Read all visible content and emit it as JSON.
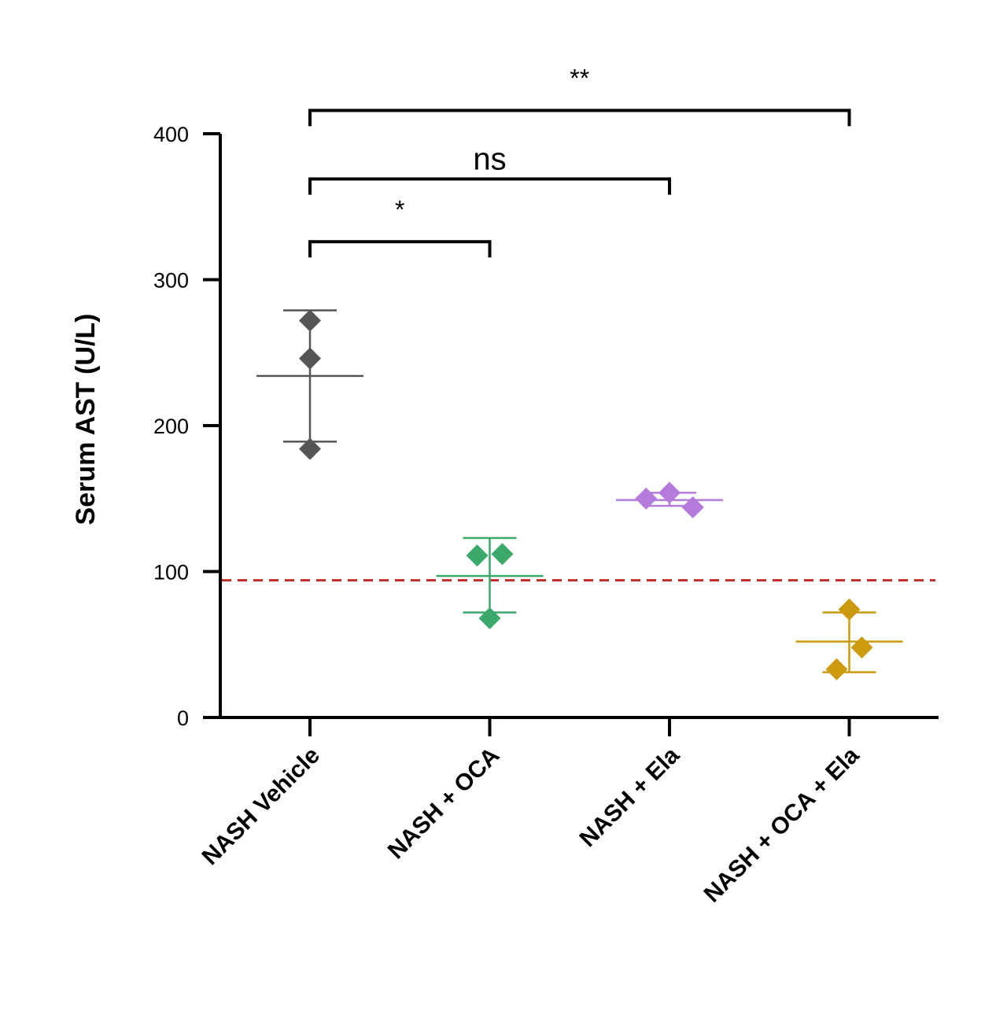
{
  "chart_data": {
    "type": "scatter",
    "ylabel": "Serum AST (U/L)",
    "xlabel": "",
    "ylim": [
      0,
      400
    ],
    "yticks": [
      0,
      100,
      200,
      300,
      400
    ],
    "categories": [
      "NASH Vehicle",
      "NASH + OCA",
      "NASH + Ela",
      "NASH + OCA + Ela"
    ],
    "series": [
      {
        "category": "NASH Vehicle",
        "color": "#555555",
        "points": [
          {
            "dx": 0,
            "y": 272
          },
          {
            "dx": 0,
            "y": 246
          },
          {
            "dx": 0,
            "y": 184
          }
        ],
        "mean": 234,
        "err_low": 189,
        "err_high": 279
      },
      {
        "category": "NASH + OCA",
        "color": "#3aa96a",
        "points": [
          {
            "dx": -0.07,
            "y": 111
          },
          {
            "dx": 0.07,
            "y": 112
          },
          {
            "dx": 0,
            "y": 68
          }
        ],
        "mean": 97,
        "err_low": 72,
        "err_high": 123
      },
      {
        "category": "NASH + Ela",
        "color": "#b57bdc",
        "points": [
          {
            "dx": -0.13,
            "y": 150
          },
          {
            "dx": 0,
            "y": 154
          },
          {
            "dx": 0.13,
            "y": 144
          }
        ],
        "mean": 149,
        "err_low": 145,
        "err_high": 154
      },
      {
        "category": "NASH + OCA + Ela",
        "color": "#cc9a0f",
        "points": [
          {
            "dx": 0,
            "y": 74
          },
          {
            "dx": 0.07,
            "y": 48
          },
          {
            "dx": -0.07,
            "y": 33
          }
        ],
        "mean": 52,
        "err_low": 31,
        "err_high": 72
      }
    ],
    "reference_line": {
      "y": 94,
      "color": "#c42a2a",
      "style": "dashed"
    },
    "comparisons": [
      {
        "from": 0,
        "to": 1,
        "y": 326,
        "label": "*"
      },
      {
        "from": 0,
        "to": 2,
        "y": 369,
        "label": "ns"
      },
      {
        "from": 0,
        "to": 3,
        "y": 416,
        "label": "**"
      }
    ]
  }
}
